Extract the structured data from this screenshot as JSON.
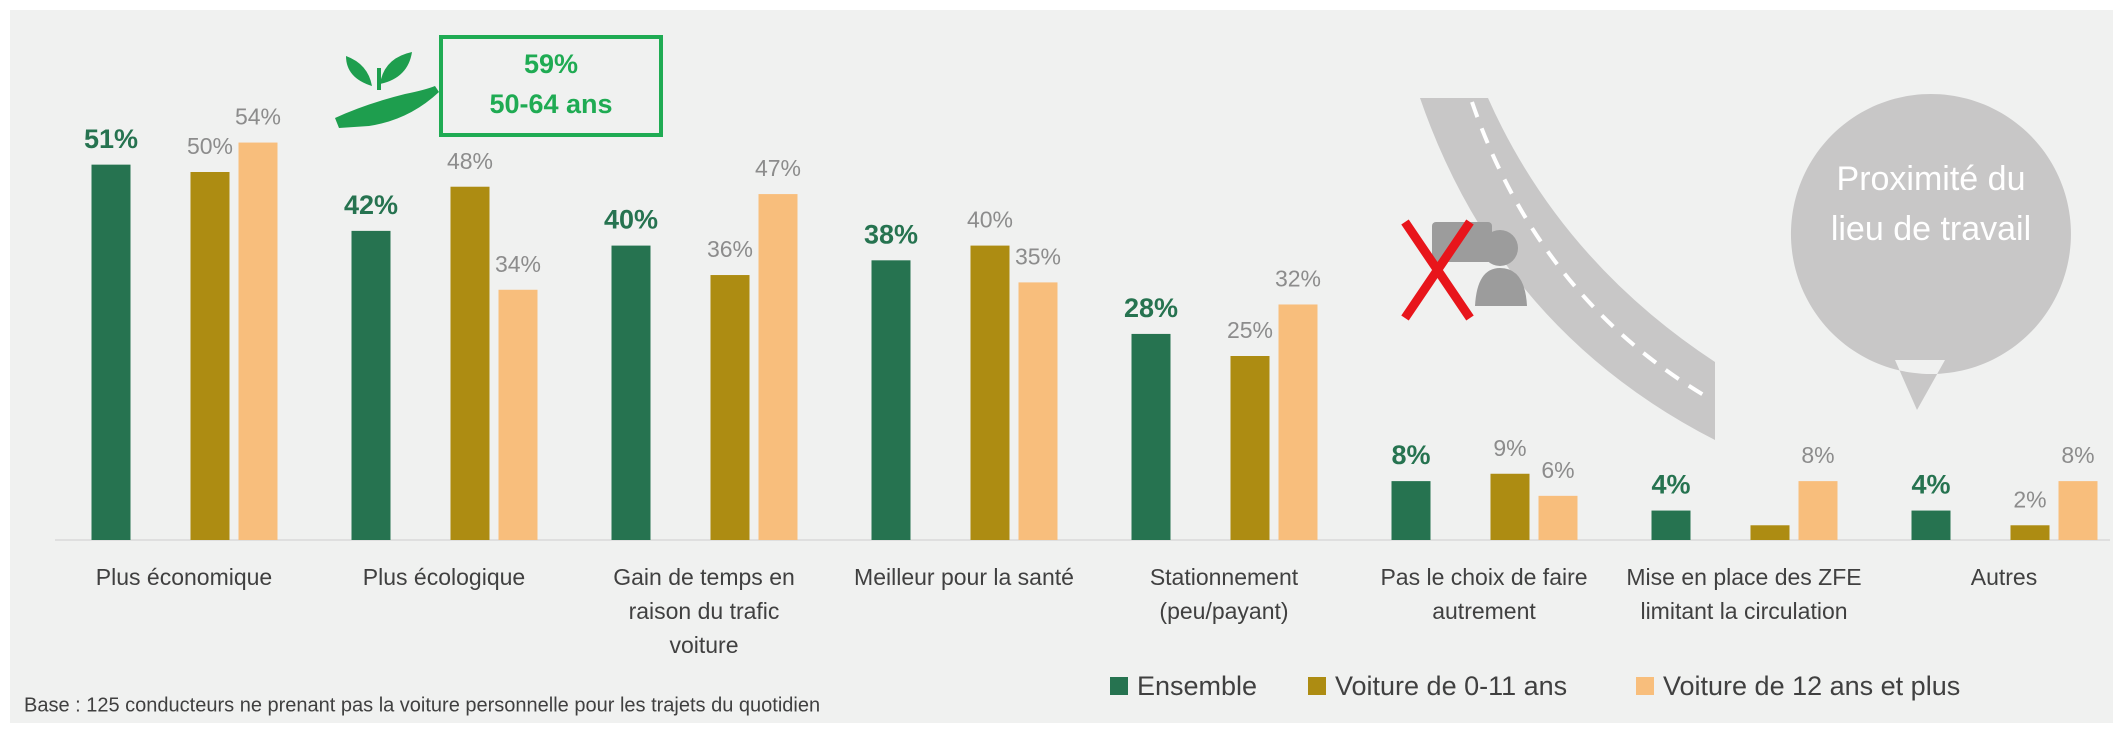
{
  "chart_data": {
    "type": "bar",
    "categories": [
      "Plus économique",
      "Plus écologique",
      "Gain de temps en raison du trafic voiture",
      "Meilleur pour la santé",
      "Stationnement (peu/payant)",
      "Pas le choix de faire autrement",
      "Mise en place des ZFE limitant la circulation",
      "Autres"
    ],
    "series": [
      {
        "name": "Ensemble",
        "color": "#267350",
        "values": [
          51,
          42,
          40,
          38,
          28,
          8,
          4,
          4
        ],
        "value_labels": [
          "51%",
          "42%",
          "40%",
          "38%",
          "28%",
          "8%",
          "4%",
          "4%"
        ]
      },
      {
        "name": "Voiture de 0-11 ans",
        "color": "#ad8c12",
        "values": [
          50,
          48,
          36,
          40,
          25,
          9,
          2,
          2
        ],
        "value_labels": [
          "50%",
          "48%",
          "36%",
          "40%",
          "25%",
          "9%",
          null,
          "2%"
        ]
      },
      {
        "name": "Voiture de 12 ans et plus",
        "color": "#f8be7c",
        "values": [
          54,
          34,
          47,
          35,
          32,
          6,
          8,
          8
        ],
        "value_labels": [
          "54%",
          "34%",
          "47%",
          "35%",
          "32%",
          "6%",
          "8%",
          "8%"
        ]
      }
    ],
    "annotations": {
      "highlight": [
        "59%",
        "50-64 ans"
      ],
      "bubble": "Proximité du lieu de travail"
    },
    "footnote": "Base : 125 conducteurs ne prenant pas la voiture personnelle pour les trajets du quotidien",
    "legend": "bottom-right"
  }
}
